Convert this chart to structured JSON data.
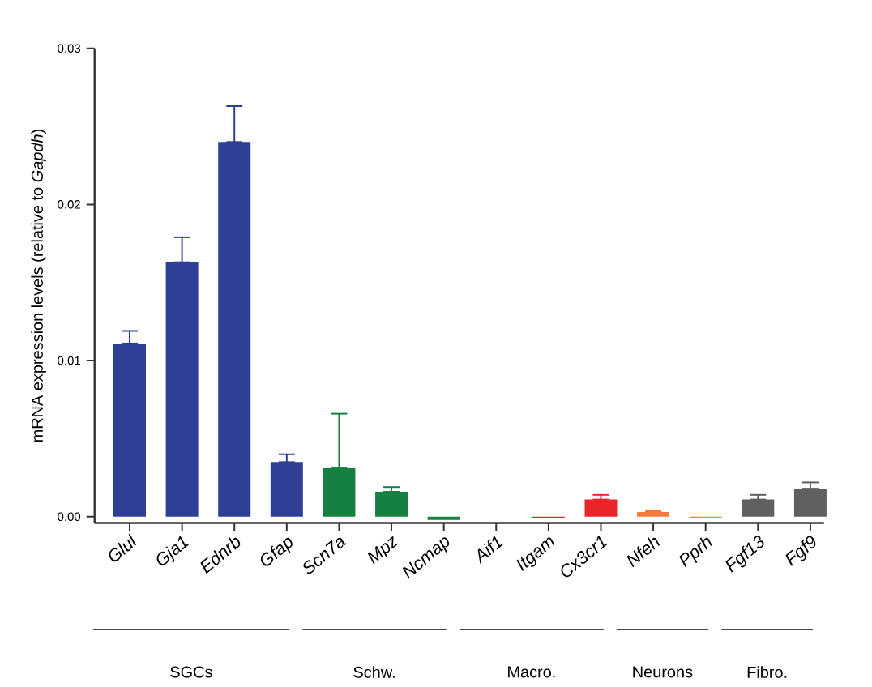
{
  "chart_data": {
    "type": "bar",
    "ylabel": "mRNA expression levels (relative to *Gapdh*)",
    "categories": [
      "Glul",
      "Gja1",
      "Ednrb",
      "Gfap",
      "Scn7a",
      "Mpz",
      "Ncmap",
      "Aif1",
      "Itgam",
      "Cx3cr1",
      "Nfeh",
      "Pprh",
      "Fgf13",
      "Fgf9"
    ],
    "values": [
      0.0111,
      0.0163,
      0.024,
      0.0035,
      0.0031,
      0.0016,
      -0.0002,
      0,
      -0.0001,
      0.0011,
      0.0003,
      -0.0001,
      0.0011,
      0.0018
    ],
    "errors": [
      [
        0.0111,
        0.0119
      ],
      [
        0.0163,
        0.0179
      ],
      [
        0.024,
        0.0263
      ],
      [
        0.0035,
        0.004
      ],
      [
        0.0031,
        0.0066
      ],
      [
        0.0016,
        0.0019
      ],
      null,
      null,
      null,
      [
        0.0011,
        0.0014
      ],
      [
        0.0003,
        0.0004
      ],
      null,
      [
        0.0011,
        0.0014
      ],
      [
        0.0018,
        0.0022
      ]
    ],
    "colors": [
      "#2e3f95",
      "#2e3f95",
      "#2e3f95",
      "#2e3f95",
      "#168040",
      "#168040",
      "#168040",
      "#e8262a",
      "#e8262a",
      "#e8262a",
      "#f47b3a",
      "#f47b3a",
      "#606060",
      "#606060"
    ],
    "ylim": [
      -0.0004,
      0.03
    ],
    "yticks": [
      {
        "value": 0,
        "label": "0.00"
      },
      0.01,
      0.02,
      0.03
    ],
    "annotations": [
      "SGCs",
      "Schw.",
      "Macro.",
      "Neurons",
      "Fibro."
    ]
  }
}
